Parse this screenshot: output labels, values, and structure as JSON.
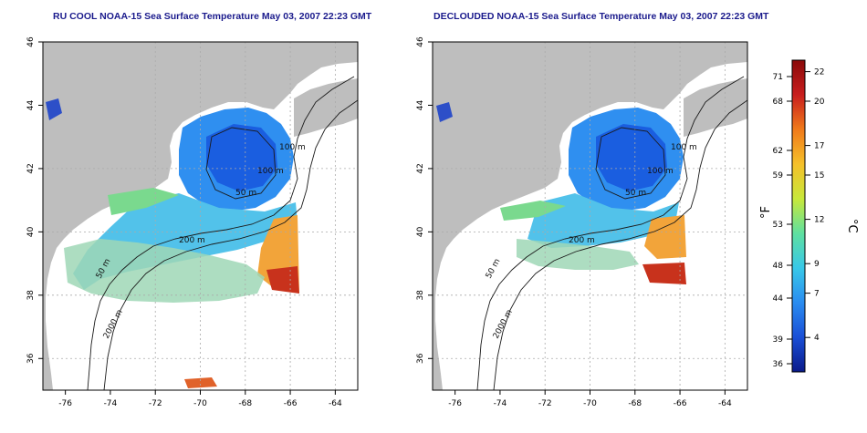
{
  "panels": [
    {
      "title": "RU COOL NOAA-15 Sea Surface Temperature May 03, 2007 22:23 GMT",
      "mode": "cool"
    },
    {
      "title": "DECLOUDED NOAA-15 Sea Surface Temperature May 03, 2007 22:23 GMT",
      "mode": "declouded"
    }
  ],
  "map_data": {
    "lon_range": [
      -77,
      -63
    ],
    "lat_range": [
      35,
      46
    ],
    "x_ticks": [
      "-76",
      "-74",
      "-72",
      "-70",
      "-68",
      "-66",
      "-64"
    ],
    "y_ticks": [
      "36",
      "38",
      "40",
      "42",
      "44",
      "46"
    ],
    "contour_labels": [
      "100 m",
      "100 m",
      "50 m",
      "200 m",
      "50 m",
      "2000 m"
    ],
    "colors": {
      "land": "#bebebe",
      "grid": "#aaaaaa",
      "contour": "#1a1a1a"
    }
  },
  "colorbar": {
    "fahrenheit_unit": "°F",
    "celsius_unit": "°C",
    "fahrenheit_ticks": [
      "71",
      "68",
      "62",
      "59",
      "53",
      "48",
      "44",
      "39",
      "36"
    ],
    "celsius_ticks": [
      "22",
      "20",
      "17",
      "15",
      "12",
      "9",
      "7",
      "4"
    ],
    "gradient": [
      "#0a1a8a",
      "#1a4fd6",
      "#2a8cf0",
      "#38c8e8",
      "#5fe0a0",
      "#c8e83a",
      "#f5c02a",
      "#f07a1a",
      "#c81e1e",
      "#8a0a0a"
    ]
  }
}
